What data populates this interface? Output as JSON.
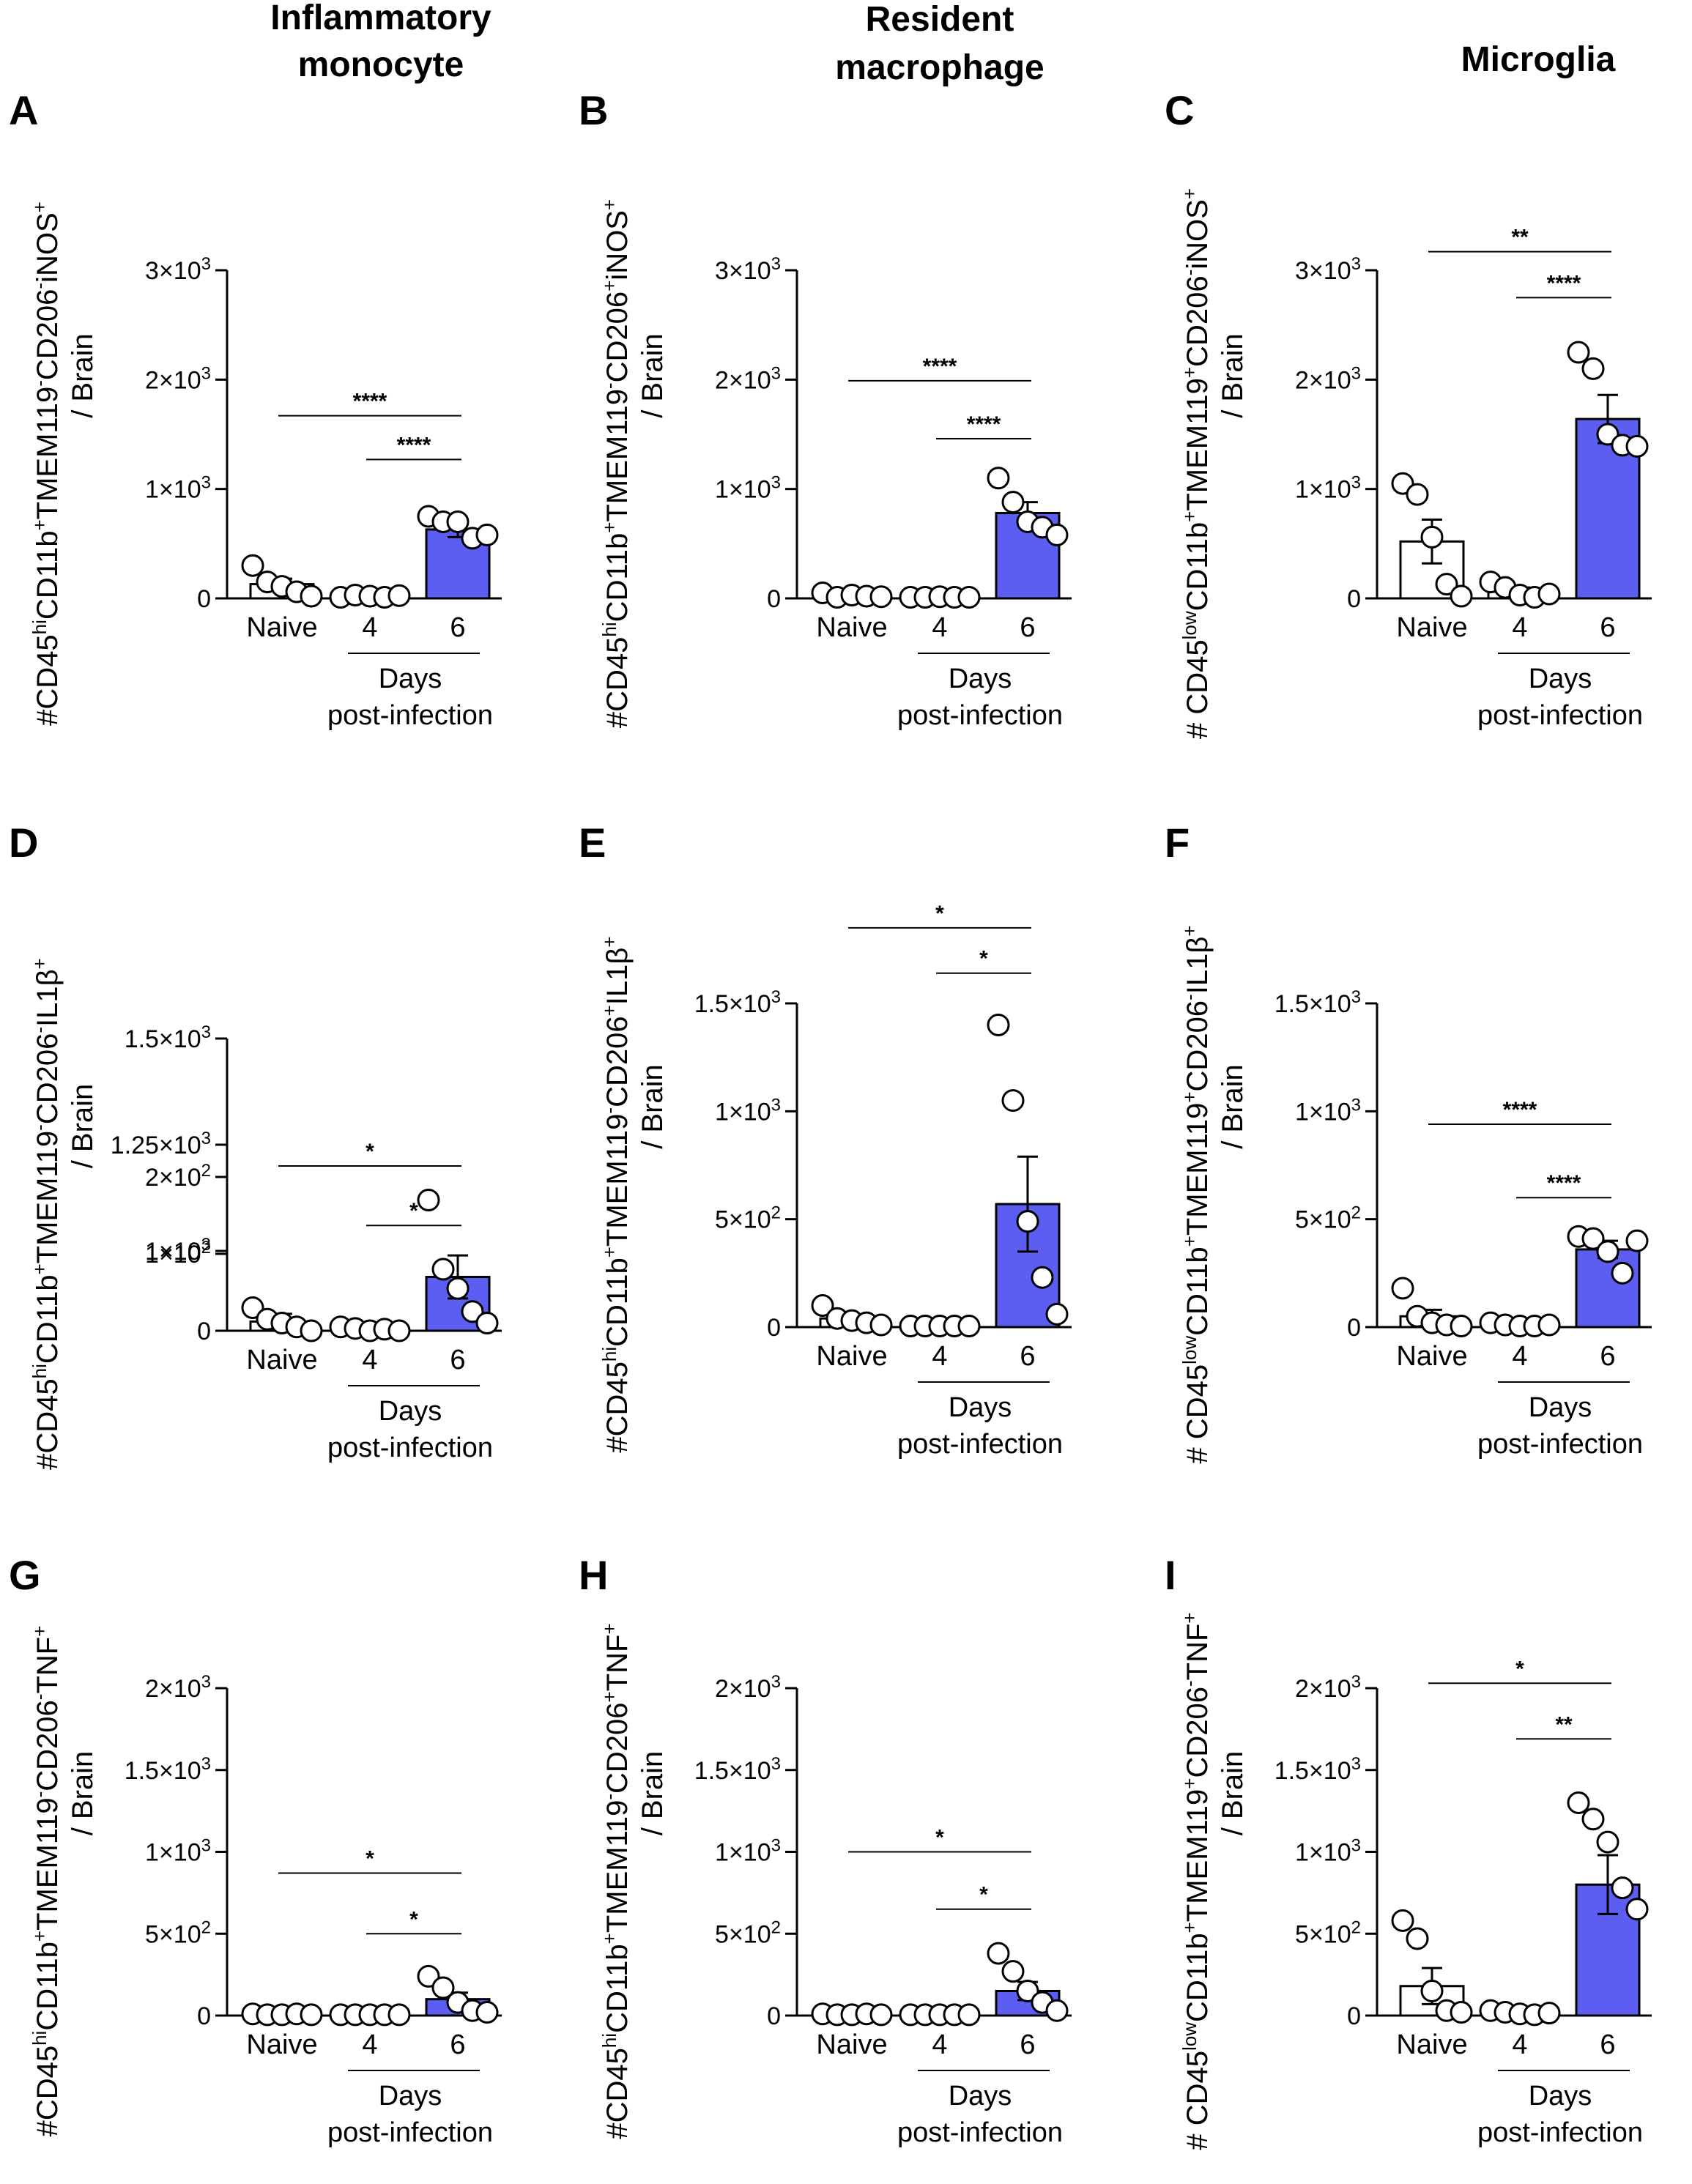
{
  "figure": {
    "column_titles": [
      [
        "Inflammatory",
        "monocyte"
      ],
      [
        "Resident",
        "macrophage"
      ],
      [
        "Microglia"
      ]
    ]
  },
  "colors": {
    "bar_fill_6": "#5b5ef0",
    "bar_fill_other": "#ffffff",
    "ink": "#000000"
  },
  "chart_data": [
    {
      "panel": "A",
      "type": "bar",
      "ylabel_html": "#CD45<tspan baseline-shift='super' font-size='26'>hi</tspan>CD11b<tspan baseline-shift='super' font-size='26'>+</tspan>TMEM119<tspan baseline-shift='super' font-size='26'>-</tspan>CD206<tspan baseline-shift='super' font-size='26'>-</tspan>iNOS<tspan baseline-shift='super' font-size='26'>+</tspan>",
      "ylabel2": "/ Brain",
      "categories": [
        "Naive",
        "4",
        "6"
      ],
      "xlabel": [
        "Days",
        "post-infection"
      ],
      "ylim": [
        0,
        3000
      ],
      "yticks": [
        {
          "v": 0,
          "t": "0"
        },
        {
          "v": 1000,
          "t": "1×10",
          "e": "3"
        },
        {
          "v": 2000,
          "t": "2×10",
          "e": "3"
        },
        {
          "v": 3000,
          "t": "3×10",
          "e": "3"
        }
      ],
      "means": [
        130,
        20,
        630
      ],
      "sem": [
        50,
        15,
        70
      ],
      "points": [
        [
          300,
          150,
          110,
          60,
          20
        ],
        [
          10,
          30,
          20,
          10,
          25
        ],
        [
          750,
          700,
          700,
          550,
          580
        ]
      ],
      "sig": [
        {
          "from": 0,
          "to": 2,
          "label": "****",
          "y": 1670
        },
        {
          "from": 1,
          "to": 2,
          "label": "****",
          "y": 1270
        }
      ]
    },
    {
      "panel": "B",
      "type": "bar",
      "ylabel_html": "#CD45<tspan baseline-shift='super' font-size='26'>hi</tspan>CD11b<tspan baseline-shift='super' font-size='26'>+</tspan>TMEM119<tspan baseline-shift='super' font-size='26'>-</tspan>CD206<tspan baseline-shift='super' font-size='26'>+</tspan>iNOS<tspan baseline-shift='super' font-size='26'>+</tspan>",
      "ylabel2": "/ Brain",
      "categories": [
        "Naive",
        "4",
        "6"
      ],
      "xlabel": [
        "Days",
        "post-infection"
      ],
      "ylim": [
        0,
        3000
      ],
      "yticks": [
        {
          "v": 0,
          "t": "0"
        },
        {
          "v": 1000,
          "t": "1×10",
          "e": "3"
        },
        {
          "v": 2000,
          "t": "2×10",
          "e": "3"
        },
        {
          "v": 3000,
          "t": "3×10",
          "e": "3"
        }
      ],
      "means": [
        30,
        10,
        780
      ],
      "sem": [
        20,
        10,
        100
      ],
      "points": [
        [
          50,
          10,
          30,
          20,
          15
        ],
        [
          10,
          10,
          15,
          10,
          10
        ],
        [
          1100,
          880,
          700,
          650,
          580
        ]
      ],
      "sig": [
        {
          "from": 0,
          "to": 2,
          "label": "****",
          "y": 1990
        },
        {
          "from": 1,
          "to": 2,
          "label": "****",
          "y": 1460
        }
      ]
    },
    {
      "panel": "C",
      "type": "bar",
      "ylabel_html": "# CD45<tspan baseline-shift='super' font-size='26'>low</tspan>CD11b<tspan baseline-shift='super' font-size='26'>+</tspan>TMEM119<tspan baseline-shift='super' font-size='26'>+</tspan>CD206<tspan baseline-shift='super' font-size='26'>-</tspan>iNOS<tspan baseline-shift='super' font-size='26'>+</tspan>",
      "ylabel2": "/ Brain",
      "categories": [
        "Naive",
        "4",
        "6"
      ],
      "xlabel": [
        "Days",
        "post-infection"
      ],
      "ylim": [
        0,
        3000
      ],
      "yticks": [
        {
          "v": 0,
          "t": "0"
        },
        {
          "v": 1000,
          "t": "1×10",
          "e": "3"
        },
        {
          "v": 2000,
          "t": "2×10",
          "e": "3"
        },
        {
          "v": 3000,
          "t": "3×10",
          "e": "3"
        }
      ],
      "means": [
        520,
        60,
        1640
      ],
      "sem": [
        200,
        40,
        220
      ],
      "points": [
        [
          1050,
          950,
          560,
          130,
          20
        ],
        [
          150,
          100,
          30,
          10,
          40
        ],
        [
          2250,
          2100,
          1500,
          1400,
          1390
        ]
      ],
      "sig": [
        {
          "from": 0,
          "to": 2,
          "label": "**",
          "y": 3170
        },
        {
          "from": 1,
          "to": 2,
          "label": "****",
          "y": 2750
        }
      ]
    },
    {
      "panel": "D",
      "type": "bar",
      "broken_axis": true,
      "ylabel_html": "#CD45<tspan baseline-shift='super' font-size='26'>hi</tspan>CD11b<tspan baseline-shift='super' font-size='26'>+</tspan>TMEM119<tspan baseline-shift='super' font-size='26'>-</tspan>CD206<tspan baseline-shift='super' font-size='26'>-</tspan>IL1β<tspan baseline-shift='super' font-size='26'>+</tspan>",
      "ylabel2": "/ Brain",
      "categories": [
        "Naive",
        "4",
        "6"
      ],
      "xlabel": [
        "Days",
        "post-infection"
      ],
      "ylim_lower": [
        0,
        200
      ],
      "ylim_upper": [
        1000,
        1500
      ],
      "yticks": [
        {
          "v": 0,
          "t": "0"
        },
        {
          "v": 100,
          "t": "1×10",
          "e": "2"
        },
        {
          "v": 200,
          "t": "2×10",
          "e": "2"
        },
        {
          "v": 1000,
          "t": "1×10",
          "e": "3"
        },
        {
          "v": 1250,
          "t": "1.25×10",
          "e": "3"
        },
        {
          "v": 1500,
          "t": "1.5×10",
          "e": "3"
        }
      ],
      "means": [
        12,
        3,
        70
      ],
      "sem": [
        10,
        2,
        28
      ],
      "points": [
        [
          30,
          15,
          10,
          5,
          0
        ],
        [
          5,
          3,
          0,
          2,
          0
        ],
        [
          170,
          80,
          55,
          25,
          10
        ]
      ],
      "sig": [
        {
          "from": 0,
          "to": 2,
          "label": "*",
          "y": 1200
        },
        {
          "from": 1,
          "to": 2,
          "label": "*",
          "y": 1060
        }
      ]
    },
    {
      "panel": "E",
      "type": "bar",
      "ylabel_html": "#CD45<tspan baseline-shift='super' font-size='26'>hi</tspan>CD11b<tspan baseline-shift='super' font-size='26'>+</tspan>TMEM119<tspan baseline-shift='super' font-size='26'>-</tspan>CD206<tspan baseline-shift='super' font-size='26'>+</tspan>IL1β<tspan baseline-shift='super' font-size='26'>+</tspan>",
      "ylabel2": "/ Brain",
      "categories": [
        "Naive",
        "4",
        "6"
      ],
      "xlabel": [
        "Days",
        "post-infection"
      ],
      "ylim": [
        0,
        1500
      ],
      "yticks": [
        {
          "v": 0,
          "t": "0"
        },
        {
          "v": 500,
          "t": "5×10",
          "e": "2"
        },
        {
          "v": 1000,
          "t": "1×10",
          "e": "3"
        },
        {
          "v": 1500,
          "t": "1.5×10",
          "e": "3"
        }
      ],
      "means": [
        40,
        5,
        570
      ],
      "sem": [
        15,
        5,
        220
      ],
      "points": [
        [
          100,
          40,
          30,
          20,
          10
        ],
        [
          5,
          5,
          5,
          5,
          5
        ],
        [
          1400,
          1050,
          490,
          230,
          60
        ]
      ],
      "sig": [
        {
          "from": 0,
          "to": 2,
          "label": "*",
          "y": 1850
        },
        {
          "from": 1,
          "to": 2,
          "label": "*",
          "y": 1640
        }
      ]
    },
    {
      "panel": "F",
      "type": "bar",
      "ylabel_html": "# CD45<tspan baseline-shift='super' font-size='26'>low</tspan>CD11b<tspan baseline-shift='super' font-size='26'>+</tspan>TMEM119<tspan baseline-shift='super' font-size='26'>+</tspan>CD206<tspan baseline-shift='super' font-size='26'>-</tspan>IL1β<tspan baseline-shift='super' font-size='26'>+</tspan>",
      "ylabel2": "/ Brain",
      "categories": [
        "Naive",
        "4",
        "6"
      ],
      "xlabel": [
        "Days",
        "post-infection"
      ],
      "ylim": [
        0,
        1500
      ],
      "yticks": [
        {
          "v": 0,
          "t": "0"
        },
        {
          "v": 500,
          "t": "5×10",
          "e": "2"
        },
        {
          "v": 1000,
          "t": "1×10",
          "e": "3"
        },
        {
          "v": 1500,
          "t": "1.5×10",
          "e": "3"
        }
      ],
      "means": [
        50,
        10,
        360
      ],
      "sem": [
        30,
        5,
        40
      ],
      "points": [
        [
          180,
          50,
          20,
          10,
          5
        ],
        [
          20,
          10,
          5,
          5,
          10
        ],
        [
          420,
          410,
          350,
          250,
          400
        ]
      ],
      "sig": [
        {
          "from": 0,
          "to": 2,
          "label": "****",
          "y": 940
        },
        {
          "from": 1,
          "to": 2,
          "label": "****",
          "y": 600
        }
      ]
    },
    {
      "panel": "G",
      "type": "bar",
      "ylabel_html": "#CD45<tspan baseline-shift='super' font-size='26'>hi</tspan>CD11b<tspan baseline-shift='super' font-size='26'>+</tspan>TMEM119<tspan baseline-shift='super' font-size='26'>-</tspan>CD206<tspan baseline-shift='super' font-size='26'>-</tspan>TNF<tspan baseline-shift='super' font-size='26'>+</tspan>",
      "ylabel2": "/ Brain",
      "categories": [
        "Naive",
        "4",
        "6"
      ],
      "xlabel": [
        "Days",
        "post-infection"
      ],
      "ylim": [
        0,
        2000
      ],
      "yticks": [
        {
          "v": 0,
          "t": "0"
        },
        {
          "v": 500,
          "t": "5×10",
          "e": "2"
        },
        {
          "v": 1000,
          "t": "1×10",
          "e": "3"
        },
        {
          "v": 1500,
          "t": "1.5×10",
          "e": "3"
        },
        {
          "v": 2000,
          "t": "2×10",
          "e": "3"
        }
      ],
      "means": [
        10,
        5,
        100
      ],
      "sem": [
        5,
        2,
        40
      ],
      "points": [
        [
          10,
          5,
          5,
          10,
          5
        ],
        [
          5,
          5,
          5,
          5,
          5
        ],
        [
          240,
          170,
          80,
          30,
          20
        ]
      ],
      "sig": [
        {
          "from": 0,
          "to": 2,
          "label": "*",
          "y": 870
        },
        {
          "from": 1,
          "to": 2,
          "label": "*",
          "y": 500
        }
      ]
    },
    {
      "panel": "H",
      "type": "bar",
      "ylabel_html": "#CD45<tspan baseline-shift='super' font-size='26'>hi</tspan>CD11b<tspan baseline-shift='super' font-size='26'>+</tspan>TMEM119<tspan baseline-shift='super' font-size='26'>-</tspan>CD206<tspan baseline-shift='super' font-size='26'>+</tspan>TNF<tspan baseline-shift='super' font-size='26'>+</tspan>",
      "ylabel2": "/ Brain",
      "categories": [
        "Naive",
        "4",
        "6"
      ],
      "xlabel": [
        "Days",
        "post-infection"
      ],
      "ylim": [
        0,
        2000
      ],
      "yticks": [
        {
          "v": 0,
          "t": "0"
        },
        {
          "v": 500,
          "t": "5×10",
          "e": "2"
        },
        {
          "v": 1000,
          "t": "1×10",
          "e": "3"
        },
        {
          "v": 1500,
          "t": "1.5×10",
          "e": "3"
        },
        {
          "v": 2000,
          "t": "2×10",
          "e": "3"
        }
      ],
      "means": [
        10,
        5,
        150
      ],
      "sem": [
        5,
        2,
        55
      ],
      "points": [
        [
          10,
          5,
          5,
          10,
          5
        ],
        [
          5,
          5,
          5,
          5,
          5
        ],
        [
          380,
          270,
          150,
          80,
          30
        ]
      ],
      "sig": [
        {
          "from": 0,
          "to": 2,
          "label": "*",
          "y": 1000
        },
        {
          "from": 1,
          "to": 2,
          "label": "*",
          "y": 650
        }
      ]
    },
    {
      "panel": "I",
      "type": "bar",
      "ylabel_html": "# CD45<tspan baseline-shift='super' font-size='26'>low</tspan>CD11b<tspan baseline-shift='super' font-size='26'>+</tspan>TMEM119<tspan baseline-shift='super' font-size='26'>+</tspan>CD206<tspan baseline-shift='super' font-size='26'>-</tspan>TNF<tspan baseline-shift='super' font-size='26'>+</tspan>",
      "ylabel2": "/ Brain",
      "categories": [
        "Naive",
        "4",
        "6"
      ],
      "xlabel": [
        "Days",
        "post-infection"
      ],
      "ylim": [
        0,
        2000
      ],
      "yticks": [
        {
          "v": 0,
          "t": "0"
        },
        {
          "v": 500,
          "t": "5×10",
          "e": "2"
        },
        {
          "v": 1000,
          "t": "1×10",
          "e": "3"
        },
        {
          "v": 1500,
          "t": "1.5×10",
          "e": "3"
        },
        {
          "v": 2000,
          "t": "2×10",
          "e": "3"
        }
      ],
      "means": [
        180,
        20,
        800
      ],
      "sem": [
        110,
        10,
        180
      ],
      "points": [
        [
          580,
          470,
          150,
          30,
          20
        ],
        [
          30,
          20,
          10,
          5,
          15
        ],
        [
          1300,
          1200,
          1060,
          780,
          650
        ]
      ],
      "sig": [
        {
          "from": 0,
          "to": 2,
          "label": "*",
          "y": 2030
        },
        {
          "from": 1,
          "to": 2,
          "label": "**",
          "y": 1690
        }
      ]
    }
  ]
}
